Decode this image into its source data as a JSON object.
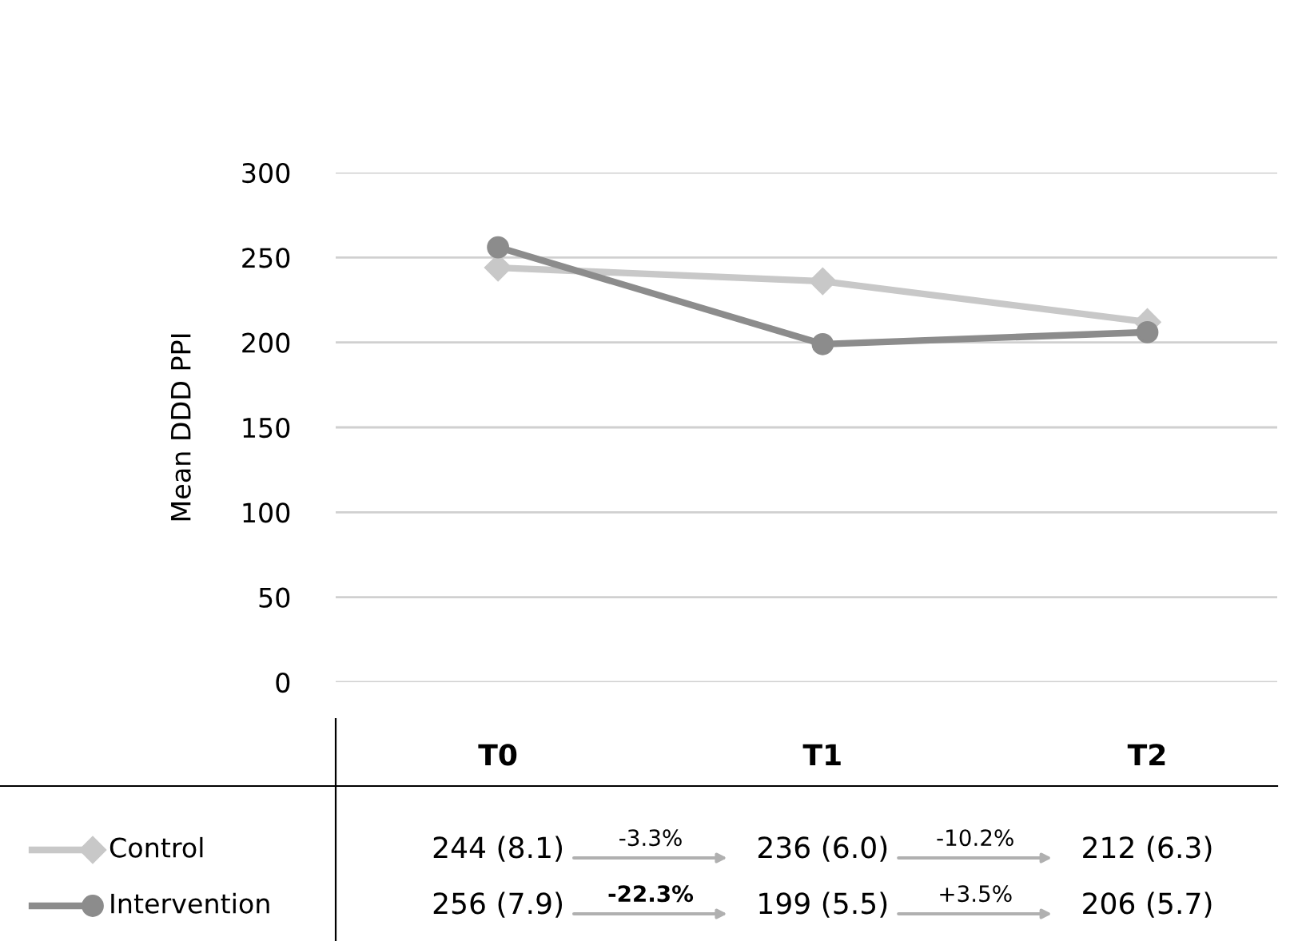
{
  "chart_data": {
    "type": "line",
    "ylabel": "Mean DDD PPI",
    "categories": [
      "T0",
      "T1",
      "T2"
    ],
    "series": [
      {
        "name": "Control",
        "color": "#c8c8c8",
        "marker": "diamond",
        "values": [
          244,
          236,
          212
        ],
        "value_labels": [
          "244 (8.1)",
          "236 (6.0)",
          "212 (6.3)"
        ]
      },
      {
        "name": "Intervention",
        "color": "#8c8c8c",
        "marker": "circle",
        "values": [
          256,
          199,
          206
        ],
        "value_labels": [
          "256 (7.9)",
          "199 (5.5)",
          "206 (5.7)"
        ]
      }
    ],
    "ylim": [
      0,
      300
    ],
    "yticks": [
      0,
      50,
      100,
      150,
      200,
      250,
      300
    ],
    "grid": "y",
    "legend": "bottom left",
    "tick_labels": "y",
    "line_style": "solid",
    "annotations": [
      "-3.3%",
      "-10.2%",
      "-22.3%",
      "+3.5%"
    ]
  }
}
